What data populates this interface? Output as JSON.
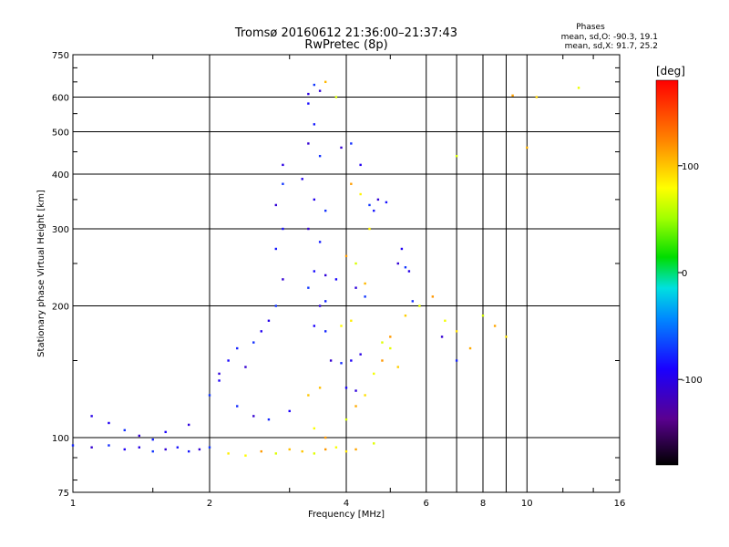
{
  "chart_data": {
    "type": "scatter",
    "title": "Tromsø 20160612 21:36:00–21:37:43",
    "subtitle": "RwPretec (8p)",
    "xlabel": "Frequency [MHz]",
    "ylabel": "Stationary phase Virtual Height [km]",
    "x_scale": "log",
    "y_scale": "log",
    "xlim": [
      1,
      16
    ],
    "ylim": [
      75,
      750
    ],
    "x_ticks": [
      1,
      2,
      4,
      6,
      8,
      10,
      16
    ],
    "x_minor_ticks": [
      7,
      9
    ],
    "y_ticks": [
      75,
      100,
      200,
      300,
      400,
      500,
      600,
      750
    ],
    "grid": true,
    "stats_header": "Phases",
    "stats": [
      "mean, sd,O: -90.3, 19.1",
      "mean, sd,X:  91.7, 25.2"
    ],
    "colorbar": {
      "label": "[deg]",
      "range": [
        -180,
        180
      ],
      "ticks": [
        {
          "value": 100,
          "label": "100"
        },
        {
          "value": 0,
          "label": "0"
        },
        {
          "value": -100,
          "label": "-100"
        }
      ]
    },
    "series": [
      {
        "description_phase": "O",
        "mean_phase": -90.3,
        "sd_phase": 19.1,
        "points": [
          [
            1.0,
            96
          ],
          [
            1.1,
            95
          ],
          [
            1.2,
            96
          ],
          [
            1.3,
            94
          ],
          [
            1.4,
            95
          ],
          [
            1.5,
            93
          ],
          [
            1.6,
            94
          ],
          [
            1.7,
            95
          ],
          [
            1.8,
            93
          ],
          [
            1.9,
            94
          ],
          [
            2.0,
            95
          ],
          [
            1.1,
            112
          ],
          [
            1.2,
            108
          ],
          [
            1.3,
            104
          ],
          [
            1.4,
            101
          ],
          [
            1.5,
            99
          ],
          [
            1.6,
            103
          ],
          [
            1.8,
            107
          ],
          [
            2.0,
            125
          ],
          [
            2.1,
            140
          ],
          [
            2.2,
            150
          ],
          [
            2.3,
            160
          ],
          [
            2.4,
            145
          ],
          [
            2.5,
            165
          ],
          [
            2.6,
            175
          ],
          [
            2.7,
            185
          ],
          [
            2.8,
            200
          ],
          [
            2.9,
            230
          ],
          [
            2.8,
            270
          ],
          [
            2.9,
            300
          ],
          [
            2.8,
            340
          ],
          [
            2.9,
            380
          ],
          [
            2.9,
            420
          ],
          [
            2.1,
            135
          ],
          [
            2.3,
            118
          ],
          [
            2.5,
            112
          ],
          [
            2.7,
            110
          ],
          [
            3.0,
            115
          ],
          [
            3.3,
            610
          ],
          [
            3.4,
            640
          ],
          [
            3.5,
            620
          ],
          [
            3.3,
            580
          ],
          [
            3.4,
            520
          ],
          [
            3.3,
            470
          ],
          [
            3.5,
            440
          ],
          [
            3.2,
            390
          ],
          [
            3.4,
            350
          ],
          [
            3.6,
            330
          ],
          [
            3.3,
            300
          ],
          [
            3.5,
            280
          ],
          [
            3.4,
            240
          ],
          [
            3.6,
            235
          ],
          [
            3.3,
            220
          ],
          [
            3.5,
            200
          ],
          [
            3.4,
            180
          ],
          [
            3.6,
            175
          ],
          [
            3.7,
            150
          ],
          [
            3.9,
            148
          ],
          [
            4.1,
            150
          ],
          [
            4.3,
            155
          ],
          [
            4.5,
            340
          ],
          [
            4.7,
            350
          ],
          [
            4.9,
            345
          ],
          [
            4.6,
            330
          ],
          [
            5.2,
            250
          ],
          [
            5.4,
            245
          ],
          [
            5.5,
            240
          ],
          [
            5.3,
            270
          ],
          [
            5.6,
            205
          ],
          [
            6.5,
            170
          ],
          [
            7.0,
            150
          ],
          [
            4.0,
            130
          ],
          [
            4.2,
            128
          ],
          [
            4.4,
            210
          ],
          [
            4.2,
            220
          ],
          [
            3.8,
            230
          ],
          [
            3.6,
            205
          ],
          [
            3.9,
            460
          ],
          [
            4.1,
            470
          ],
          [
            4.3,
            420
          ]
        ]
      },
      {
        "description_phase": "X",
        "mean_phase": 91.7,
        "sd_phase": 25.2,
        "points": [
          [
            2.2,
            92
          ],
          [
            2.4,
            91
          ],
          [
            2.6,
            93
          ],
          [
            2.8,
            92
          ],
          [
            3.0,
            94
          ],
          [
            3.2,
            93
          ],
          [
            3.4,
            92
          ],
          [
            3.6,
            94
          ],
          [
            3.8,
            95
          ],
          [
            4.0,
            93
          ],
          [
            4.2,
            94
          ],
          [
            4.0,
            110
          ],
          [
            4.2,
            118
          ],
          [
            4.4,
            125
          ],
          [
            4.6,
            140
          ],
          [
            4.8,
            150
          ],
          [
            5.0,
            160
          ],
          [
            5.2,
            145
          ],
          [
            3.6,
            650
          ],
          [
            3.8,
            600
          ],
          [
            4.1,
            380
          ],
          [
            4.3,
            360
          ],
          [
            4.5,
            300
          ],
          [
            4.0,
            260
          ],
          [
            4.2,
            250
          ],
          [
            4.4,
            225
          ],
          [
            5.4,
            190
          ],
          [
            5.8,
            200
          ],
          [
            6.2,
            210
          ],
          [
            6.6,
            185
          ],
          [
            7.0,
            175
          ],
          [
            7.5,
            160
          ],
          [
            8.0,
            190
          ],
          [
            8.5,
            180
          ],
          [
            9.0,
            170
          ],
          [
            3.4,
            105
          ],
          [
            3.6,
            100
          ],
          [
            4.6,
            97
          ],
          [
            3.3,
            125
          ],
          [
            3.5,
            130
          ],
          [
            4.8,
            165
          ],
          [
            5.0,
            170
          ],
          [
            3.9,
            180
          ],
          [
            4.1,
            185
          ],
          [
            9.3,
            605
          ],
          [
            7.0,
            440
          ],
          [
            10.0,
            460
          ],
          [
            10.5,
            600
          ],
          [
            13.0,
            630
          ]
        ]
      }
    ]
  }
}
